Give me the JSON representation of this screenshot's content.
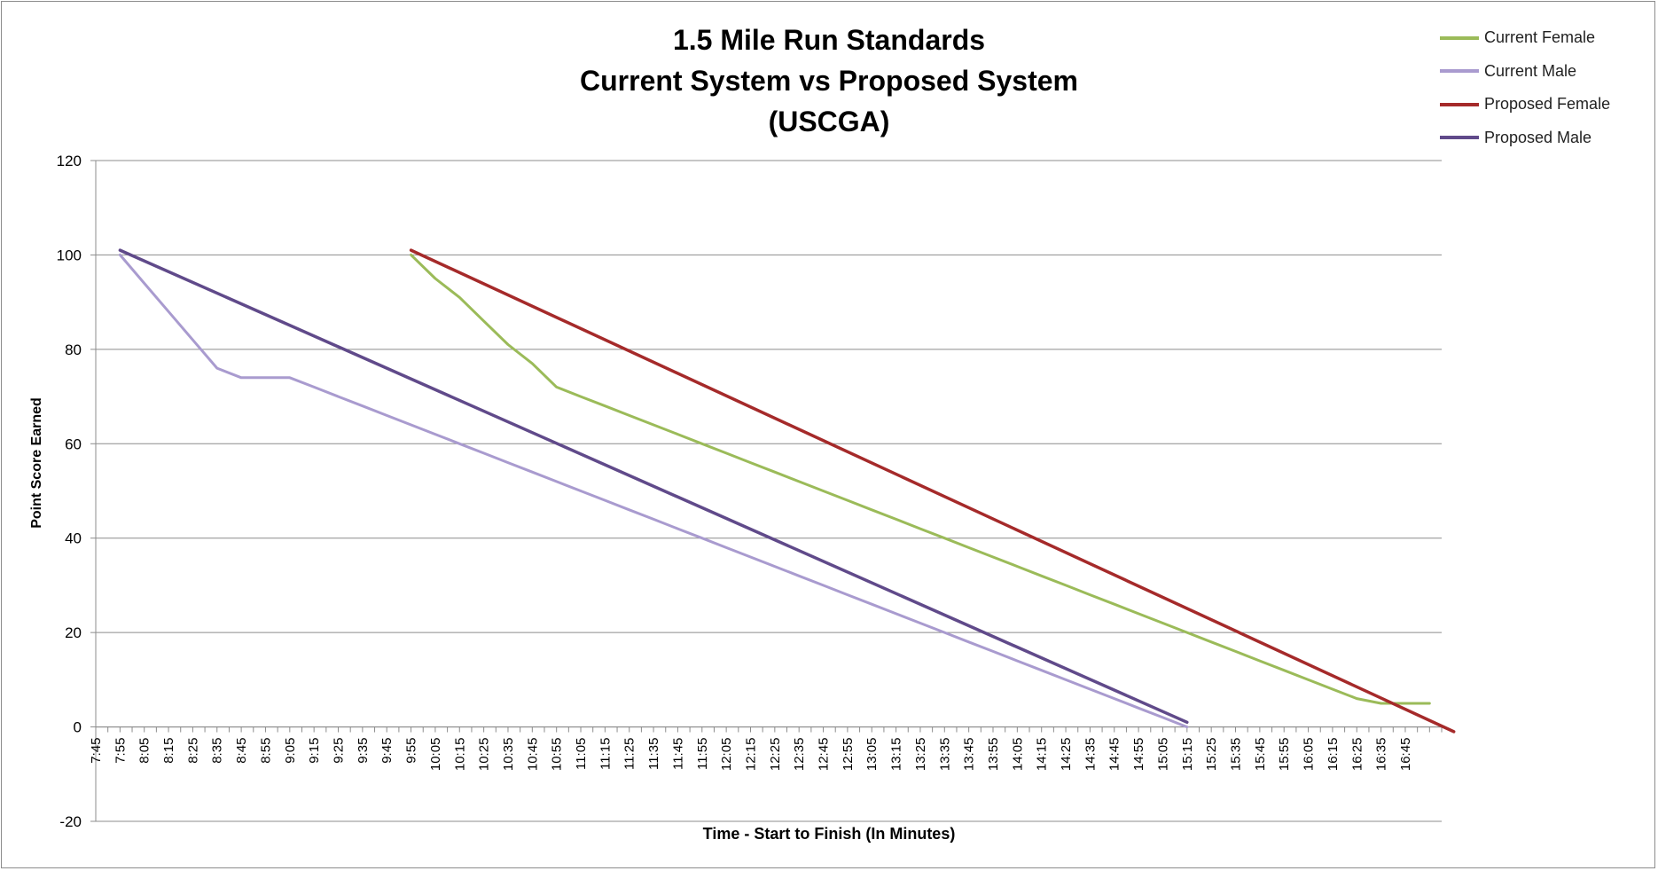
{
  "chart_data": {
    "type": "line",
    "title": [
      "1.5 Mile Run Standards",
      "Current System vs Proposed System",
      "(USCGA)"
    ],
    "xlabel": "Time - Start to Finish (In Minutes)",
    "ylabel": "Point Score Earned",
    "ylim": [
      -20,
      120
    ],
    "y_ticks": [
      -20,
      0,
      20,
      40,
      60,
      80,
      100,
      120
    ],
    "x_range_seconds": [
      465,
      1020
    ],
    "x_tick_labels": [
      "7:45",
      "7:55",
      "8:05",
      "8:15",
      "8:25",
      "8:35",
      "8:45",
      "8:55",
      "9:05",
      "9:15",
      "9:25",
      "9:35",
      "9:45",
      "9:55",
      "10:05",
      "10:15",
      "10:25",
      "10:35",
      "10:45",
      "10:55",
      "11:05",
      "11:15",
      "11:25",
      "11:35",
      "11:45",
      "11:55",
      "12:05",
      "12:15",
      "12:25",
      "12:35",
      "12:45",
      "12:55",
      "13:05",
      "13:15",
      "13:25",
      "13:35",
      "13:45",
      "13:55",
      "14:05",
      "14:15",
      "14:25",
      "14:35",
      "14:45",
      "14:55",
      "15:05",
      "15:15",
      "15:25",
      "15:35",
      "15:45",
      "15:55",
      "16:05",
      "16:15",
      "16:25",
      "16:35",
      "16:45"
    ],
    "grid": true,
    "legend_position": "top-right",
    "series": [
      {
        "name": "Current Female",
        "color": "#9bbb59",
        "x": [
          "9:55",
          "10:05",
          "10:15",
          "10:25",
          "10:35",
          "10:45",
          "10:55",
          "11:05",
          "11:15",
          "11:25",
          "11:35",
          "11:45",
          "11:55",
          "12:05",
          "12:15",
          "12:25",
          "12:35",
          "12:45",
          "12:55",
          "13:05",
          "13:15",
          "13:25",
          "13:35",
          "13:45",
          "13:55",
          "14:05",
          "14:15",
          "14:25",
          "14:35",
          "14:45",
          "14:55",
          "15:05",
          "15:15",
          "15:25",
          "15:35",
          "15:45",
          "15:55",
          "16:05",
          "16:15",
          "16:25",
          "16:35",
          "16:45",
          "16:55"
        ],
        "y": [
          100,
          95,
          91,
          86,
          81,
          77,
          72,
          70,
          68,
          66,
          64,
          62,
          60,
          58,
          56,
          54,
          52,
          50,
          48,
          46,
          44,
          42,
          40,
          38,
          36,
          34,
          32,
          30,
          28,
          26,
          24,
          22,
          20,
          18,
          16,
          14,
          12,
          10,
          8,
          6,
          5,
          5,
          5
        ]
      },
      {
        "name": "Current Male",
        "color": "#a99bcf",
        "x": [
          "7:55",
          "8:05",
          "8:15",
          "8:25",
          "8:35",
          "8:45",
          "8:55",
          "9:05",
          "9:15",
          "9:25",
          "9:35",
          "9:45",
          "9:55",
          "10:05",
          "10:15",
          "10:25",
          "10:35",
          "10:45",
          "10:55",
          "11:05",
          "11:15",
          "11:25",
          "11:35",
          "11:45",
          "11:55",
          "12:05",
          "12:15",
          "12:25",
          "12:35",
          "12:45",
          "12:55",
          "13:05",
          "13:15",
          "13:25",
          "13:35",
          "13:45",
          "13:55",
          "14:05",
          "14:15",
          "14:25",
          "14:35",
          "14:45",
          "14:55",
          "15:05",
          "15:15"
        ],
        "y": [
          100,
          94,
          88,
          82,
          76,
          74,
          74,
          74,
          72,
          70,
          68,
          66,
          64,
          62,
          60,
          58,
          56,
          54,
          52,
          50,
          48,
          46,
          44,
          42,
          40,
          38,
          36,
          34,
          32,
          30,
          28,
          26,
          24,
          22,
          20,
          18,
          16,
          14,
          12,
          10,
          8,
          6,
          4,
          2,
          0
        ]
      },
      {
        "name": "Proposed Female",
        "color": "#a52a2a",
        "x": [
          "9:55",
          "17:05"
        ],
        "y": [
          101,
          -1
        ]
      },
      {
        "name": "Proposed Male",
        "color": "#604a8a",
        "x": [
          "7:55",
          "15:15"
        ],
        "y": [
          101,
          1
        ]
      }
    ]
  }
}
